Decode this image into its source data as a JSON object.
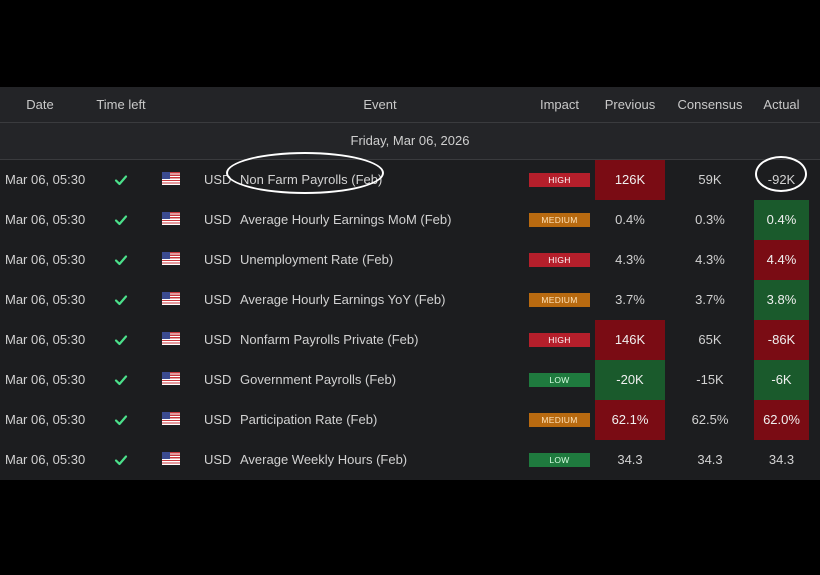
{
  "columns": {
    "date": "Date",
    "time_left": "Time left",
    "event": "Event",
    "impact": "Impact",
    "previous": "Previous",
    "consensus": "Consensus",
    "actual": "Actual"
  },
  "date_group": "Friday, Mar 06, 2026",
  "colors": {
    "high": "#b51f2b",
    "medium": "#b86a10",
    "low": "#1f7a3e",
    "negative_cell": "#7a0c14",
    "positive_cell": "#1a5a2c",
    "check": "#4be08a"
  },
  "rows": [
    {
      "date": "Mar 06, 05:30",
      "status_icon": "check-icon",
      "flag_icon": "us-flag-icon",
      "currency": "USD",
      "event": "Non Farm Payrolls (Feb)",
      "impact": "HIGH",
      "previous": "126K",
      "consensus": "59K",
      "actual": "-92K",
      "previous_color": "red",
      "actual_color": "",
      "circled": true
    },
    {
      "date": "Mar 06, 05:30",
      "status_icon": "check-icon",
      "flag_icon": "us-flag-icon",
      "currency": "USD",
      "event": "Average Hourly Earnings MoM (Feb)",
      "impact": "MEDIUM",
      "previous": "0.4%",
      "consensus": "0.3%",
      "actual": "0.4%",
      "previous_color": "",
      "actual_color": "green"
    },
    {
      "date": "Mar 06, 05:30",
      "status_icon": "check-icon",
      "flag_icon": "us-flag-icon",
      "currency": "USD",
      "event": "Unemployment Rate (Feb)",
      "impact": "HIGH",
      "previous": "4.3%",
      "consensus": "4.3%",
      "actual": "4.4%",
      "previous_color": "",
      "actual_color": "red"
    },
    {
      "date": "Mar 06, 05:30",
      "status_icon": "check-icon",
      "flag_icon": "us-flag-icon",
      "currency": "USD",
      "event": "Average Hourly Earnings YoY (Feb)",
      "impact": "MEDIUM",
      "previous": "3.7%",
      "consensus": "3.7%",
      "actual": "3.8%",
      "previous_color": "",
      "actual_color": "green"
    },
    {
      "date": "Mar 06, 05:30",
      "status_icon": "check-icon",
      "flag_icon": "us-flag-icon",
      "currency": "USD",
      "event": "Nonfarm Payrolls Private (Feb)",
      "impact": "HIGH",
      "previous": "146K",
      "consensus": "65K",
      "actual": "-86K",
      "previous_color": "red",
      "actual_color": "red"
    },
    {
      "date": "Mar 06, 05:30",
      "status_icon": "check-icon",
      "flag_icon": "us-flag-icon",
      "currency": "USD",
      "event": "Government Payrolls (Feb)",
      "impact": "LOW",
      "previous": "-20K",
      "consensus": "-15K",
      "actual": "-6K",
      "previous_color": "green",
      "actual_color": "green"
    },
    {
      "date": "Mar 06, 05:30",
      "status_icon": "check-icon",
      "flag_icon": "us-flag-icon",
      "currency": "USD",
      "event": "Participation Rate (Feb)",
      "impact": "MEDIUM",
      "previous": "62.1%",
      "consensus": "62.5%",
      "actual": "62.0%",
      "previous_color": "red",
      "actual_color": "red"
    },
    {
      "date": "Mar 06, 05:30",
      "status_icon": "check-icon",
      "flag_icon": "us-flag-icon",
      "currency": "USD",
      "event": "Average Weekly Hours (Feb)",
      "impact": "LOW",
      "previous": "34.3",
      "consensus": "34.3",
      "actual": "34.3",
      "previous_color": "",
      "actual_color": ""
    }
  ]
}
